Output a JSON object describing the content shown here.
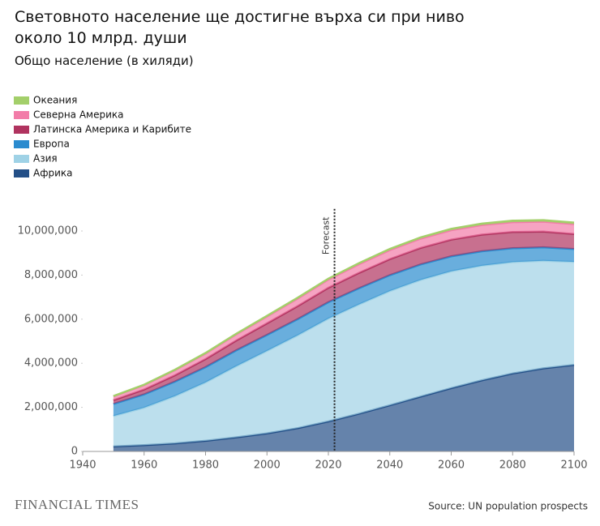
{
  "chart_data": {
    "type": "stacked_area",
    "title": "Световното население ще достигне върха си при ниво около 10 млрд. души",
    "subtitle": "Общо население (в хиляди)",
    "x": [
      1950,
      1960,
      1970,
      1980,
      1990,
      2000,
      2010,
      2020,
      2030,
      2040,
      2050,
      2060,
      2070,
      2080,
      2090,
      2100
    ],
    "series": [
      {
        "name": "Африка",
        "color": "#234f87",
        "values": [
          227000,
          283000,
          365000,
          482000,
          638000,
          819000,
          1055000,
          1360000,
          1711000,
          2093000,
          2485000,
          2870000,
          3226000,
          3537000,
          3770000,
          3924000
        ]
      },
      {
        "name": "Азия",
        "color": "#9fd2e6",
        "values": [
          1379000,
          1700000,
          2143000,
          2649000,
          3226000,
          3741000,
          4210000,
          4664000,
          4958000,
          5180000,
          5293000,
          5300000,
          5200000,
          5050000,
          4880000,
          4674000
        ]
      },
      {
        "name": "Европа",
        "color": "#2a8bcf",
        "values": [
          549000,
          605000,
          657000,
          694000,
          721000,
          726000,
          736000,
          746000,
          736000,
          723000,
          703000,
          680000,
          655000,
          630000,
          610000,
          586000
        ]
      },
      {
        "name": "Латинска Америка и Карибите",
        "color": "#b0335f",
        "values": [
          169000,
          220000,
          287000,
          364000,
          446000,
          523000,
          591000,
          654000,
          695000,
          726000,
          749000,
          757000,
          752000,
          736000,
          711000,
          680000
        ]
      },
      {
        "name": "Северна Америка",
        "color": "#f27ca8",
        "values": [
          173000,
          205000,
          231000,
          254000,
          280000,
          312000,
          343000,
          371000,
          393000,
          410000,
          421000,
          430000,
          439000,
          447000,
          451000,
          448000
        ]
      },
      {
        "name": "Океания",
        "color": "#a3cf6a",
        "values": [
          13000,
          16000,
          20000,
          23000,
          27000,
          31000,
          37000,
          44000,
          49000,
          54000,
          58000,
          62000,
          65000,
          68000,
          70000,
          69000
        ]
      }
    ],
    "xlim": [
      1940,
      2100
    ],
    "xticks": [
      1940,
      1960,
      1980,
      2000,
      2020,
      2040,
      2060,
      2080,
      2100
    ],
    "ylim": [
      0,
      11000000
    ],
    "yticks": [
      0,
      {
        "value": 2000000,
        "label": "2,000,000"
      },
      {
        "value": 4000000,
        "label": "4,000,000"
      },
      {
        "value": 6000000,
        "label": "6,000,000"
      },
      {
        "value": 8000000,
        "label": "8,000,000"
      },
      {
        "value": 10000000,
        "label": "10,000,000"
      }
    ],
    "forecast": {
      "x": 2022,
      "label": "Forecast"
    },
    "brand": "FINANCIAL TIMES",
    "source": "Source: UN population prospects"
  }
}
